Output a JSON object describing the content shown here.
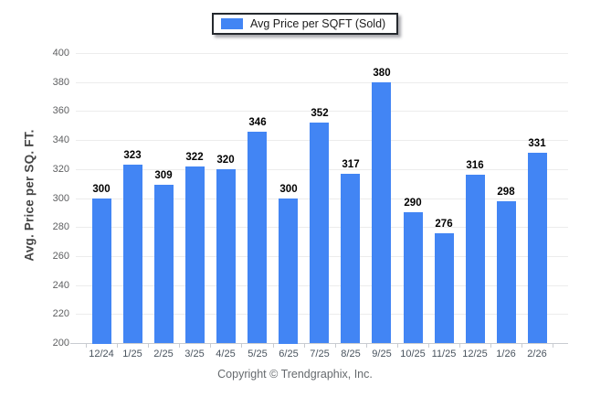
{
  "legend": {
    "label": "Avg Price per SQFT (Sold)",
    "swatch_icon": "blue-bar-swatch"
  },
  "footer": {
    "text": "Copyright © Trendgraphix, Inc."
  },
  "colors": {
    "bar": "#4285F4",
    "gridline": "#ececec",
    "axis_line": "#c9ccd1",
    "data_label": "#000000",
    "y_tick_label": "#5f6062",
    "x_tick_label": "#49535e",
    "legend_border": "#25292e"
  },
  "chart_data": {
    "type": "bar",
    "title": "",
    "xlabel": "",
    "ylabel": "Avg. Price per SQ. FT.",
    "categories": [
      "12/24",
      "1/25",
      "2/25",
      "3/25",
      "4/25",
      "5/25",
      "6/25",
      "7/25",
      "8/25",
      "9/25",
      "10/25",
      "11/25",
      "12/25",
      "1/26",
      "2/26"
    ],
    "series": [
      {
        "name": "Avg Price per SQFT (Sold)",
        "values": [
          300,
          323,
          309,
          322,
          320,
          346,
          300,
          352,
          317,
          380,
          290,
          276,
          316,
          298,
          331
        ]
      }
    ],
    "ylim": [
      200,
      400
    ],
    "ytick_step": 20,
    "grid": "horizontal",
    "legend_position": "top-center",
    "data_labels": "above-bars"
  }
}
